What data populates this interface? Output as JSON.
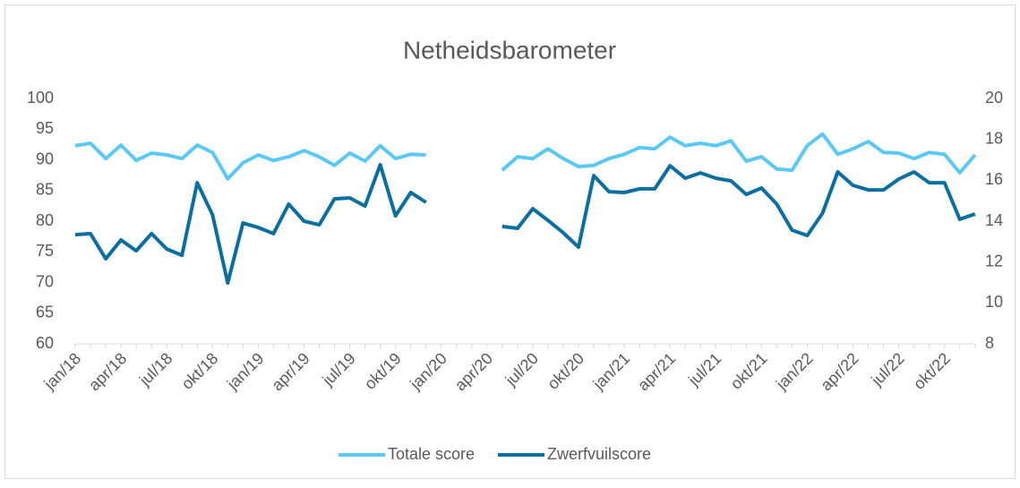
{
  "chart_data": {
    "type": "line",
    "title": "Netheidsbarometer",
    "categories": [
      "jan/18",
      null,
      null,
      "apr/18",
      null,
      null,
      "jul/18",
      null,
      null,
      "okt/18",
      null,
      null,
      "jan/19",
      null,
      null,
      "apr/19",
      null,
      null,
      "jul/19",
      null,
      null,
      "okt/19",
      null,
      null,
      "jan/20",
      null,
      null,
      "apr/20",
      null,
      null,
      "jul/20",
      null,
      null,
      "okt/20",
      null,
      null,
      "jan/21",
      null,
      null,
      "apr/21",
      null,
      null,
      "jul/21",
      null,
      null,
      "okt/21",
      null,
      null,
      "jan/22",
      null,
      null,
      "apr/22",
      null,
      null,
      "jul/22",
      null,
      null,
      "okt/22",
      null,
      null
    ],
    "series": [
      {
        "name": "Totale score",
        "color": "#5bc8f5",
        "axis": "y",
        "values": [
          92.3,
          92.7,
          90.2,
          92.4,
          89.9,
          91.1,
          90.8,
          90.2,
          92.4,
          91.2,
          86.9,
          89.5,
          90.8,
          89.9,
          90.5,
          91.5,
          90.5,
          89.1,
          91.1,
          89.8,
          92.3,
          90.2,
          90.9,
          90.8,
          null,
          null,
          null,
          null,
          88.3,
          90.5,
          90.2,
          91.8,
          90.2,
          88.9,
          89.1,
          90.2,
          90.9,
          92.0,
          91.8,
          93.7,
          92.3,
          92.7,
          92.3,
          93.1,
          89.8,
          90.5,
          88.5,
          88.3,
          92.3,
          94.2,
          90.9,
          91.8,
          93.0,
          91.2,
          91.1,
          90.2,
          91.2,
          90.9,
          87.9,
          90.8
        ]
      },
      {
        "name": "Zwerfvuilscore",
        "color": "#0a6fa0",
        "axis": "y2",
        "values": [
          13.34,
          13.39,
          12.16,
          13.08,
          12.55,
          13.39,
          12.64,
          12.33,
          15.88,
          14.31,
          10.98,
          13.91,
          13.69,
          13.39,
          14.83,
          14.0,
          13.82,
          15.09,
          15.14,
          14.74,
          16.76,
          14.26,
          15.4,
          14.92,
          null,
          null,
          null,
          null,
          13.74,
          13.65,
          14.61,
          14.04,
          13.43,
          12.73,
          16.23,
          15.44,
          15.4,
          15.58,
          15.58,
          16.71,
          16.1,
          16.36,
          16.1,
          15.97,
          15.31,
          15.62,
          14.83,
          13.56,
          13.3,
          14.39,
          16.41,
          15.75,
          15.53,
          15.53,
          16.06,
          16.41,
          15.88,
          15.88,
          14.09,
          14.35
        ]
      }
    ],
    "ylim": [
      60,
      100
    ],
    "yticks": [
      60,
      65,
      70,
      75,
      80,
      85,
      90,
      95,
      100
    ],
    "y2lim": [
      8,
      20
    ],
    "y2ticks": [
      8,
      10,
      12,
      14,
      16,
      18,
      20
    ],
    "legend": "bottom"
  }
}
